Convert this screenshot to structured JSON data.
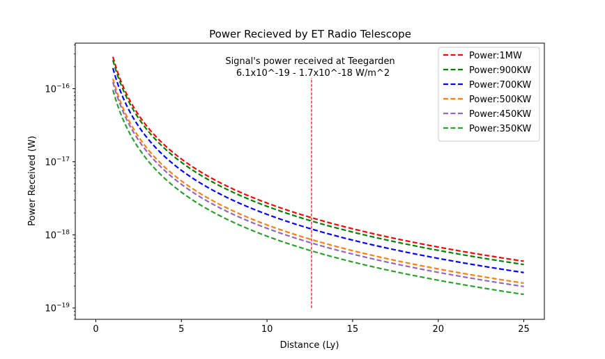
{
  "chart_data": {
    "type": "line",
    "title": "Power Recieved by ET Radio Telescope",
    "xlabel": "Distance (Ly)",
    "ylabel": "Power Received (W)",
    "xlim": [
      -1.2,
      26.2
    ],
    "ylim": [
      7e-20,
      4.2e-16
    ],
    "yscale": "log",
    "x_ticks": [
      0,
      5,
      10,
      15,
      20,
      25
    ],
    "y_ticks": [
      {
        "value": 1e-19,
        "base": "10",
        "exp": "−19"
      },
      {
        "value": 1e-18,
        "base": "10",
        "exp": "−18"
      },
      {
        "value": 1e-17,
        "base": "10",
        "exp": "−17"
      },
      {
        "value": 1e-16,
        "base": "10",
        "exp": "−16"
      }
    ],
    "x_range": [
      1,
      25
    ],
    "model": "y = k / x^2",
    "series": [
      {
        "name": "Power:1MW",
        "color": "#ff0000",
        "k": 2.73e-16
      },
      {
        "name": "Power:900KW",
        "color": "#008000",
        "k": 2.46e-16
      },
      {
        "name": "Power:700KW",
        "color": "#0000ff",
        "k": 1.91e-16
      },
      {
        "name": "Power:500KW",
        "color": "#ff7f0e",
        "k": 1.37e-16
      },
      {
        "name": "Power:450KW",
        "color": "#9467bd",
        "k": 1.23e-16
      },
      {
        "name": "Power:350KW",
        "color": "#2ca02c",
        "k": 9.6e-17
      }
    ],
    "vline": {
      "x": 12.6,
      "ymin": 1e-19,
      "ymax": 1.4e-16,
      "color": "#ff0000"
    },
    "annotation": {
      "line1": "Signal's power received at Teegarden",
      "line2": "6.1x10^-19 - 1.7x10^-18 W/m^2"
    },
    "legend_position": "top-right"
  }
}
